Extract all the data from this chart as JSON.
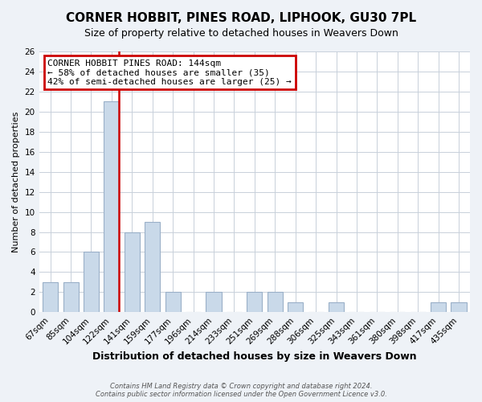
{
  "title": "CORNER HOBBIT, PINES ROAD, LIPHOOK, GU30 7PL",
  "subtitle": "Size of property relative to detached houses in Weavers Down",
  "xlabel": "Distribution of detached houses by size in Weavers Down",
  "ylabel": "Number of detached properties",
  "bins": [
    "67sqm",
    "85sqm",
    "104sqm",
    "122sqm",
    "141sqm",
    "159sqm",
    "177sqm",
    "196sqm",
    "214sqm",
    "233sqm",
    "251sqm",
    "269sqm",
    "288sqm",
    "306sqm",
    "325sqm",
    "343sqm",
    "361sqm",
    "380sqm",
    "398sqm",
    "417sqm",
    "435sqm"
  ],
  "counts": [
    3,
    3,
    6,
    21,
    8,
    9,
    2,
    0,
    2,
    0,
    2,
    2,
    1,
    0,
    1,
    0,
    0,
    0,
    0,
    1,
    1
  ],
  "bar_color": "#c9d9e9",
  "bar_edge_color": "#9ab0c8",
  "highlight_line_color": "#cc0000",
  "annotation_title": "CORNER HOBBIT PINES ROAD: 144sqm",
  "annotation_line1": "← 58% of detached houses are smaller (35)",
  "annotation_line2": "42% of semi-detached houses are larger (25) →",
  "annotation_box_color": "#ffffff",
  "annotation_box_edge": "#cc0000",
  "ylim": [
    0,
    26
  ],
  "yticks": [
    0,
    2,
    4,
    6,
    8,
    10,
    12,
    14,
    16,
    18,
    20,
    22,
    24,
    26
  ],
  "footer1": "Contains HM Land Registry data © Crown copyright and database right 2024.",
  "footer2": "Contains public sector information licensed under the Open Government Licence v3.0.",
  "background_color": "#eef2f7",
  "plot_background_color": "#ffffff",
  "grid_color": "#c8d0da",
  "title_fontsize": 11,
  "subtitle_fontsize": 9,
  "xlabel_fontsize": 9,
  "ylabel_fontsize": 8,
  "tick_fontsize": 7.5,
  "annotation_fontsize": 8
}
